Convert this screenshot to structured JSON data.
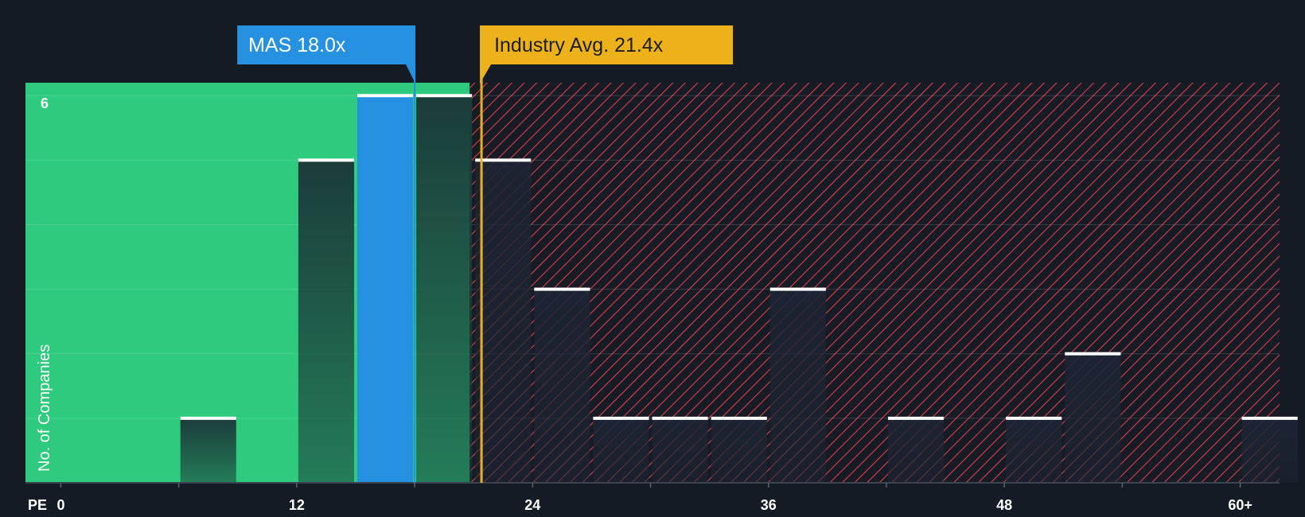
{
  "chart_data": {
    "type": "bar",
    "title": "",
    "xlabel": "PE",
    "ylabel": "No. of Companies",
    "xlim": [
      -1.8,
      62
    ],
    "ylim": [
      0,
      6.2
    ],
    "bin_width": 3,
    "x_ticks": [
      {
        "value": 0,
        "label": "0"
      },
      {
        "value": 12,
        "label": "12"
      },
      {
        "value": 24,
        "label": "24"
      },
      {
        "value": 36,
        "label": "36"
      },
      {
        "value": 48,
        "label": "48"
      },
      {
        "value": 60,
        "label": "60+"
      }
    ],
    "y_ticks": [
      {
        "value": 6,
        "label": "6"
      }
    ],
    "bins": [
      {
        "start": 6,
        "count": 1
      },
      {
        "start": 12,
        "count": 5
      },
      {
        "start": 15,
        "count": 6,
        "highlight": true
      },
      {
        "start": 18,
        "count": 6
      },
      {
        "start": 21,
        "count": 5
      },
      {
        "start": 24,
        "count": 3
      },
      {
        "start": 27,
        "count": 1
      },
      {
        "start": 30,
        "count": 1
      },
      {
        "start": 33,
        "count": 1
      },
      {
        "start": 36,
        "count": 3
      },
      {
        "start": 42,
        "count": 1
      },
      {
        "start": 48,
        "count": 1
      },
      {
        "start": 51,
        "count": 2
      },
      {
        "start": 60,
        "count": 1
      }
    ],
    "fair_zone_end": 20.8,
    "company": {
      "label": "MAS 18.0x",
      "value": 18.0
    },
    "industry": {
      "label": "Industry Avg. 21.4x",
      "value": 21.4
    },
    "colors": {
      "background": "#151b24",
      "fair_zone": "#2ecb7e",
      "hatch_line": "#d64343",
      "company": "#2591e0",
      "industry": "#edb219",
      "bar_top": "#ffffff"
    }
  }
}
